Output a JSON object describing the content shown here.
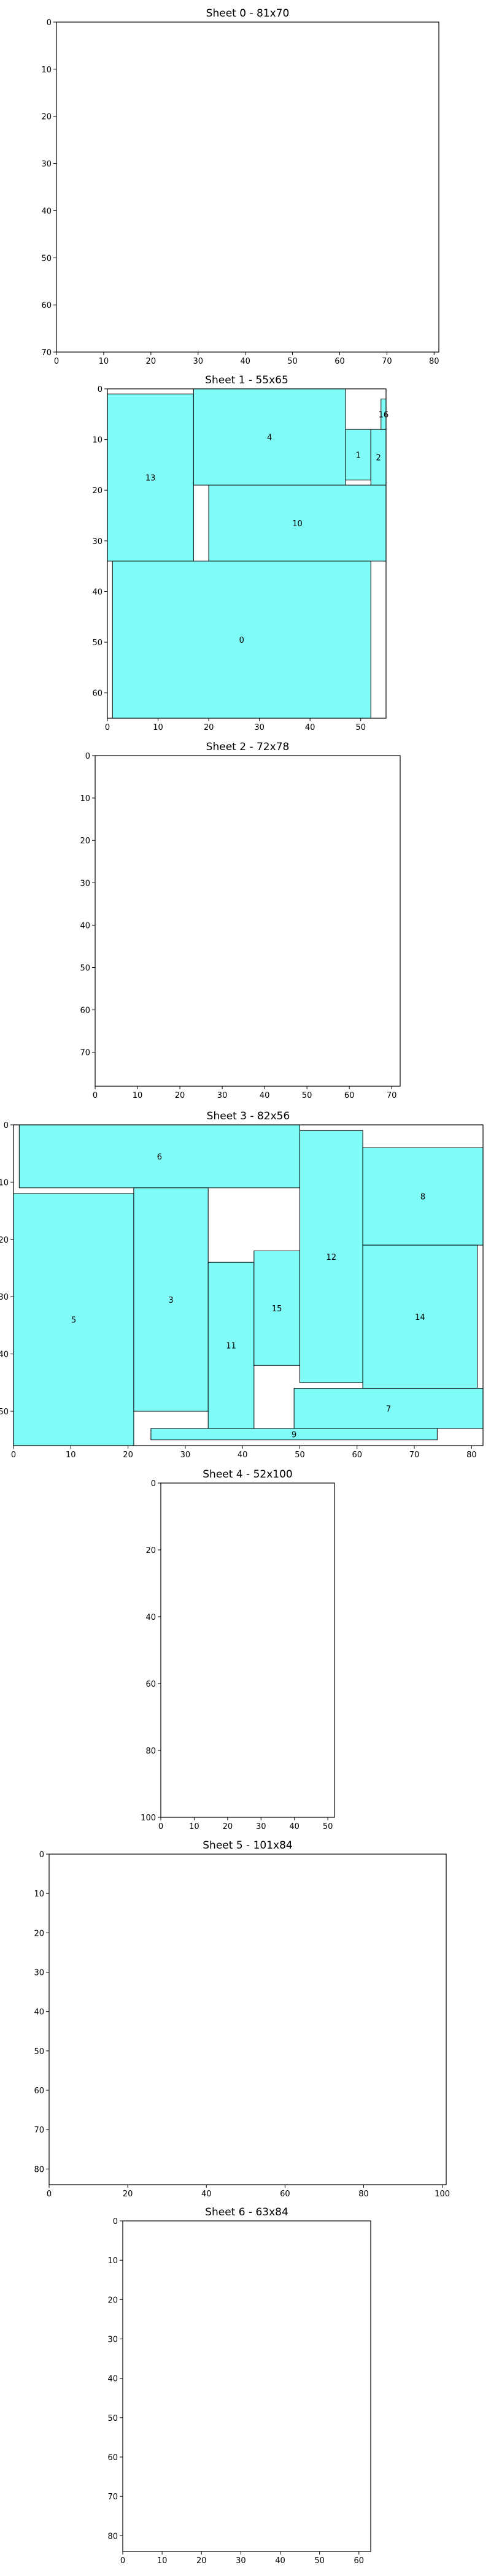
{
  "style": {
    "piece_fill": "#7ffbf8",
    "piece_stroke": "#000000",
    "background": "#ffffff"
  },
  "chart_data": [
    {
      "title": "Sheet 0 - 81x70",
      "width": 81,
      "height": 70,
      "xticks": [
        0,
        10,
        20,
        30,
        40,
        50,
        60,
        70,
        80
      ],
      "yticks": [
        0,
        10,
        20,
        30,
        40,
        50,
        60,
        70
      ],
      "pieces": []
    },
    {
      "title": "Sheet 1 - 55x65",
      "width": 55,
      "height": 65,
      "xticks": [
        0,
        10,
        20,
        30,
        40,
        50
      ],
      "yticks": [
        0,
        10,
        20,
        30,
        40,
        50,
        60
      ],
      "pieces": [
        {
          "label": "13",
          "x": 0,
          "y": 1,
          "w": 17,
          "h": 33
        },
        {
          "label": "4",
          "x": 17,
          "y": 0,
          "w": 30,
          "h": 19
        },
        {
          "label": "1",
          "x": 47,
          "y": 8,
          "w": 5,
          "h": 10
        },
        {
          "label": "2",
          "x": 52,
          "y": 8,
          "w": 3,
          "h": 11
        },
        {
          "label": "16",
          "x": 54,
          "y": 2,
          "w": 1,
          "h": 6
        },
        {
          "label": "10",
          "x": 20,
          "y": 19,
          "w": 35,
          "h": 15
        },
        {
          "label": "0",
          "x": 1,
          "y": 34,
          "w": 51,
          "h": 31
        }
      ]
    },
    {
      "title": "Sheet 2 - 72x78",
      "width": 72,
      "height": 78,
      "xticks": [
        0,
        10,
        20,
        30,
        40,
        50,
        60,
        70
      ],
      "yticks": [
        0,
        10,
        20,
        30,
        40,
        50,
        60,
        70
      ],
      "pieces": []
    },
    {
      "title": "Sheet 3 - 82x56",
      "width": 82,
      "height": 56,
      "xticks": [
        0,
        10,
        20,
        30,
        40,
        50,
        60,
        70,
        80
      ],
      "yticks": [
        0,
        10,
        20,
        30,
        40,
        50
      ],
      "pieces": [
        {
          "label": "6",
          "x": 1,
          "y": 0,
          "w": 49,
          "h": 11
        },
        {
          "label": "5",
          "x": 0,
          "y": 12,
          "w": 21,
          "h": 44
        },
        {
          "label": "3",
          "x": 21,
          "y": 11,
          "w": 13,
          "h": 39
        },
        {
          "label": "11",
          "x": 34,
          "y": 24,
          "w": 8,
          "h": 29
        },
        {
          "label": "15",
          "x": 42,
          "y": 22,
          "w": 8,
          "h": 20
        },
        {
          "label": "12",
          "x": 50,
          "y": 1,
          "w": 11,
          "h": 44
        },
        {
          "label": "8",
          "x": 61,
          "y": 4,
          "w": 21,
          "h": 17
        },
        {
          "label": "14",
          "x": 61,
          "y": 21,
          "w": 20,
          "h": 25
        },
        {
          "label": "7",
          "x": 49,
          "y": 46,
          "w": 33,
          "h": 7
        },
        {
          "label": "9",
          "x": 24,
          "y": 53,
          "w": 50,
          "h": 2
        }
      ]
    },
    {
      "title": "Sheet 4 - 52x100",
      "width": 52,
      "height": 100,
      "xticks": [
        0,
        10,
        20,
        30,
        40,
        50
      ],
      "yticks": [
        0,
        20,
        40,
        60,
        80,
        100
      ],
      "pieces": []
    },
    {
      "title": "Sheet 5 - 101x84",
      "width": 101,
      "height": 84,
      "xticks": [
        0,
        20,
        40,
        60,
        80,
        100
      ],
      "yticks": [
        0,
        10,
        20,
        30,
        40,
        50,
        60,
        70,
        80
      ],
      "pieces": []
    },
    {
      "title": "Sheet 6 - 63x84",
      "width": 63,
      "height": 84,
      "xticks": [
        0,
        10,
        20,
        30,
        40,
        50,
        60
      ],
      "yticks": [
        0,
        10,
        20,
        30,
        40,
        50,
        60,
        70,
        80
      ],
      "pieces": []
    }
  ]
}
